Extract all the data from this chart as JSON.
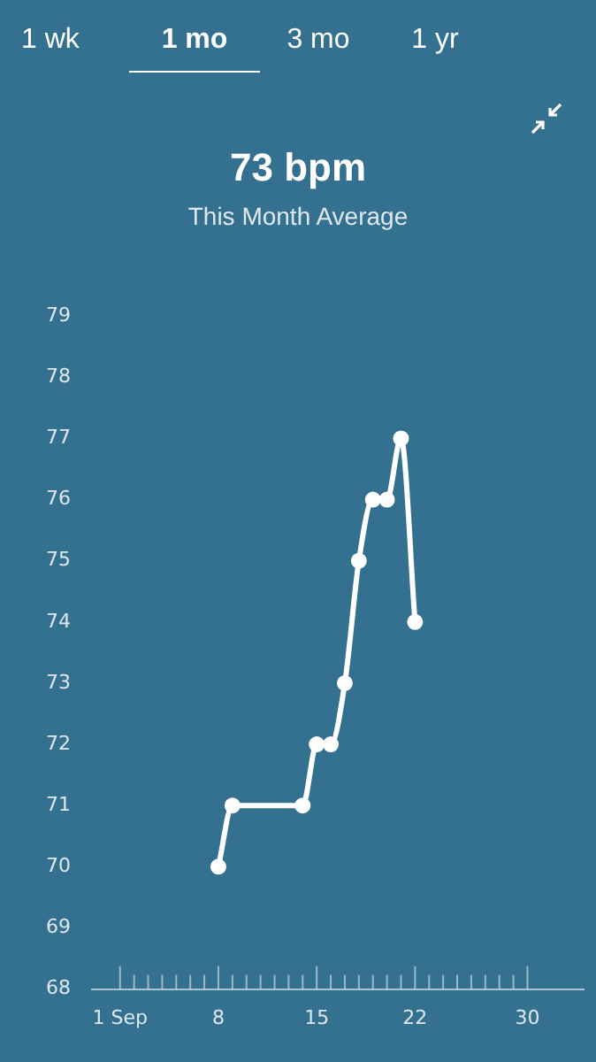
{
  "chart_data": {
    "type": "line",
    "title": "73 bpm",
    "subtitle": "This Month Average",
    "annotations": [
      "1 wk",
      "1 mo",
      "3 mo",
      "1 yr"
    ],
    "x": [
      8,
      9,
      14,
      15,
      16,
      17,
      18,
      19,
      20,
      21,
      22
    ],
    "values": [
      70,
      71,
      71,
      72,
      72,
      73,
      75,
      76,
      76,
      77,
      74
    ],
    "color": "#ffffff",
    "marker": "circle",
    "xlim": [
      -1,
      34
    ],
    "ylim": [
      68,
      79
    ],
    "xticks": [
      {
        "value": 1,
        "label": "1 Sep"
      },
      {
        "value": 2,
        "label": null
      },
      {
        "value": 3,
        "label": null
      },
      {
        "value": 4,
        "label": null
      },
      {
        "value": 5,
        "label": null
      },
      {
        "value": 6,
        "label": null
      },
      {
        "value": 7,
        "label": null
      },
      8,
      {
        "value": 9,
        "label": null
      },
      {
        "value": 10,
        "label": null
      },
      {
        "value": 11,
        "label": null
      },
      {
        "value": 12,
        "label": null
      },
      {
        "value": 13,
        "label": null
      },
      {
        "value": 14,
        "label": null
      },
      15,
      {
        "value": 16,
        "label": null
      },
      {
        "value": 17,
        "label": null
      },
      {
        "value": 18,
        "label": null
      },
      {
        "value": 19,
        "label": null
      },
      {
        "value": 20,
        "label": null
      },
      {
        "value": 21,
        "label": null
      },
      22,
      {
        "value": 23,
        "label": null
      },
      {
        "value": 24,
        "label": null
      },
      {
        "value": 25,
        "label": null
      },
      {
        "value": 26,
        "label": null
      },
      {
        "value": 27,
        "label": null
      },
      {
        "value": 28,
        "label": null
      },
      {
        "value": 29,
        "label": null
      },
      30
    ],
    "yticks": [
      68,
      69,
      70,
      71,
      72,
      73,
      74,
      75,
      76,
      77,
      78,
      79
    ]
  }
}
